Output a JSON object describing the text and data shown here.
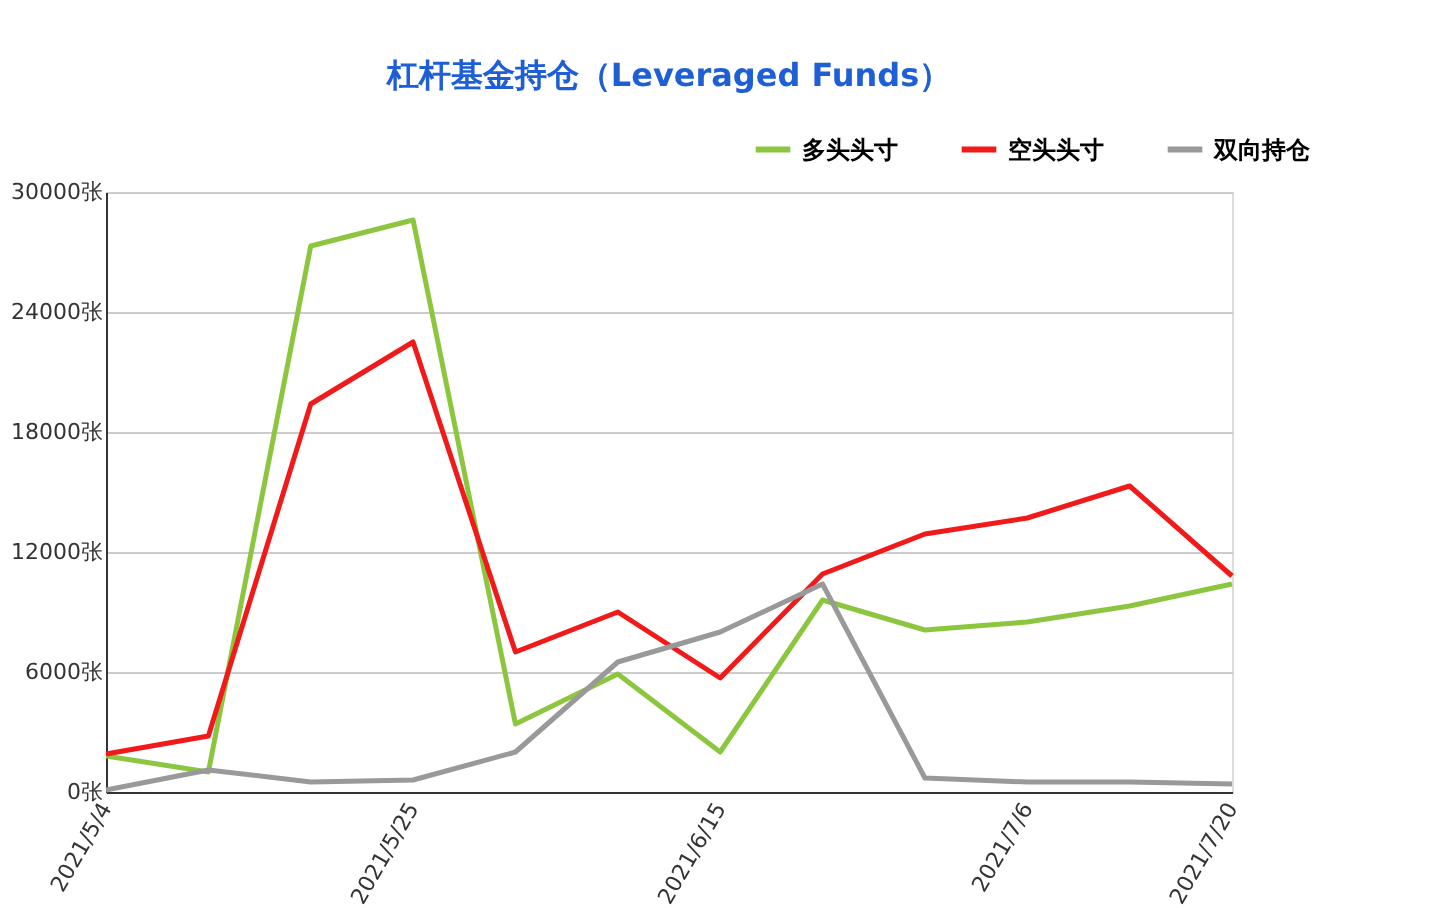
{
  "chart_data": {
    "type": "line",
    "title": "杠杆基金持仓（Leveraged Funds）",
    "categories": [
      "2021/5/4",
      null,
      null,
      "2021/5/25",
      null,
      null,
      "2021/6/15",
      null,
      null,
      "2021/7/6",
      null,
      "2021/7/20"
    ],
    "series": [
      {
        "name": "多头头寸",
        "color": "#8cc63f",
        "values": [
          1800,
          1000,
          27300,
          28600,
          3400,
          5900,
          2000,
          9600,
          8100,
          8500,
          9300,
          10400
        ]
      },
      {
        "name": "空头头寸",
        "color": "#f01a1a",
        "values": [
          1900,
          2800,
          19400,
          22500,
          7000,
          9000,
          5700,
          10900,
          12900,
          13700,
          15300,
          10800
        ]
      },
      {
        "name": "双向持仓",
        "color": "#999999",
        "values": [
          100,
          1100,
          500,
          600,
          2000,
          6500,
          8000,
          10400,
          700,
          500,
          500,
          400
        ]
      }
    ],
    "ylim": [
      0,
      30000
    ],
    "yticks": [
      {
        "value": 0,
        "label": "0张"
      },
      {
        "value": 6000,
        "label": "6000张"
      },
      {
        "value": 12000,
        "label": "12000张"
      },
      {
        "value": 18000,
        "label": "18000张"
      },
      {
        "value": 24000,
        "label": "24000张"
      },
      {
        "value": 30000,
        "label": "30000张"
      }
    ],
    "grid": "y",
    "legend": "top right",
    "marker": "none",
    "line_style": "solid"
  }
}
